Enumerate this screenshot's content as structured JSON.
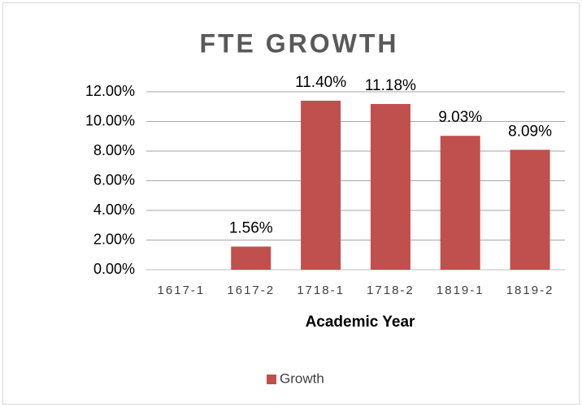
{
  "chart_data": {
    "type": "bar",
    "title": "FTE GROWTH",
    "x_label": "Academic Year",
    "categories": [
      "1617-1",
      "1617-2",
      "1718-1",
      "1718-2",
      "1819-1",
      "1819-2"
    ],
    "series": [
      {
        "name": "Growth",
        "color": "#c0504d",
        "values": [
          null,
          1.56,
          11.4,
          11.18,
          9.03,
          8.09
        ],
        "value_labels": [
          null,
          "1.56%",
          "11.40%",
          "11.18%",
          "9.03%",
          "8.09%"
        ]
      }
    ],
    "ylim": [
      0,
      12
    ],
    "yticks": [
      {
        "value": 0,
        "label": "0.00%"
      },
      {
        "value": 2,
        "label": "2.00%"
      },
      {
        "value": 4,
        "label": "4.00%"
      },
      {
        "value": 6,
        "label": "6.00%"
      },
      {
        "value": 8,
        "label": "8.00%"
      },
      {
        "value": 10,
        "label": "10.00%"
      },
      {
        "value": 12,
        "label": "12.00%"
      }
    ],
    "grid": true,
    "legend": "bottom"
  }
}
